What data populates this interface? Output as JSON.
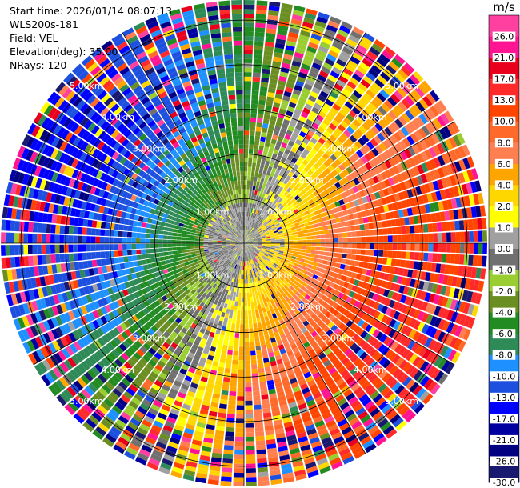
{
  "header": {
    "start_time": "Start time: 2026/01/14 08:07:13",
    "instrument": "WLS200s-181",
    "field": "Field: VEL",
    "elevation": "Elevation(deg): 35.00",
    "nrays": "NRays: 120"
  },
  "chart_data": {
    "type": "heatmap",
    "subtype": "polar-ppi",
    "field": "VEL",
    "nrays": 120,
    "range_rings_km": [
      1,
      2,
      3,
      4,
      5
    ],
    "range_ring_labels": [
      "1.00km",
      "2.00km",
      "3.00km",
      "4.00km",
      "5.00km"
    ],
    "max_range_km": 5.45,
    "colorbar": {
      "unit": "m/s",
      "ticks": [
        "26.0",
        "21.0",
        "17.0",
        "13.0",
        "10.0",
        "8.0",
        "6.0",
        "4.0",
        "2.0",
        "1.0",
        "0.0",
        "-1.0",
        "-2.0",
        "-4.0",
        "-6.0",
        "-8.0",
        "-10.0",
        "-13.0",
        "-17.0",
        "-21.0",
        "-26.0",
        "-30.0"
      ],
      "bounds": [
        30,
        26,
        21,
        17,
        13,
        10,
        8,
        6,
        4,
        2,
        1,
        0,
        -1,
        -2,
        -4,
        -6,
        -8,
        -10,
        -13,
        -17,
        -21,
        -26,
        -30
      ],
      "colors": [
        "#ff40a0",
        "#ff1493",
        "#e8001c",
        "#ff2a2a",
        "#ff4500",
        "#ff6a2a",
        "#ff7f50",
        "#ffa500",
        "#ffd700",
        "#ffff00",
        "#a0a0a0",
        "#707070",
        "#9acd32",
        "#6b8e23",
        "#228b22",
        "#2e8b57",
        "#1e90ff",
        "#1e50e0",
        "#0000ff",
        "#0000a0",
        "#000080",
        "#191970"
      ]
    },
    "pattern": {
      "description": "dipole radial-velocity pattern",
      "positive_direction": "east / south-east",
      "negative_direction": "north / north-west",
      "peak_speed_ms": 14.0,
      "near_zero_core_km": 0.9
    }
  }
}
